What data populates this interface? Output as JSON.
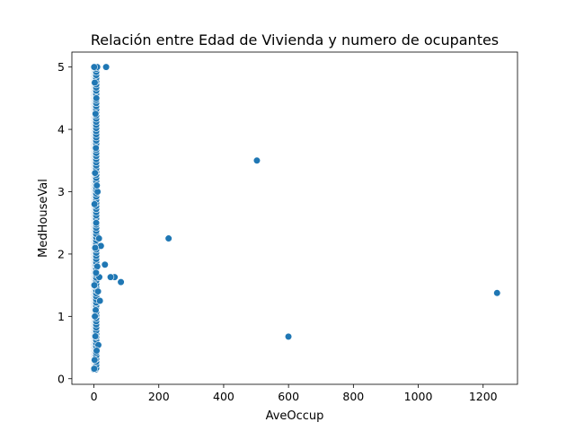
{
  "chart_data": {
    "type": "scatter",
    "title": "Relación entre Edad de Vivienda y numero de ocupantes",
    "xlabel": "AveOccup",
    "ylabel": "MedHouseVal",
    "xlim": [
      -68,
      1306
    ],
    "ylim": [
      -0.09,
      5.24
    ],
    "xticks": [
      0,
      200,
      400,
      600,
      800,
      1000,
      1200
    ],
    "yticks": [
      0,
      1,
      2,
      3,
      4,
      5
    ],
    "grid": false,
    "marker_color": "#1f77b4",
    "marker_edge_color": "#ffffff",
    "points": [
      {
        "x": 1243,
        "y": 1.375
      },
      {
        "x": 599.7,
        "y": 0.675
      },
      {
        "x": 502.5,
        "y": 3.5
      },
      {
        "x": 230.2,
        "y": 2.25
      },
      {
        "x": 83.2,
        "y": 1.55
      },
      {
        "x": 63.8,
        "y": 1.63
      },
      {
        "x": 51.4,
        "y": 1.63
      },
      {
        "x": 37.6,
        "y": 5.0
      },
      {
        "x": 33.9,
        "y": 1.83
      },
      {
        "x": 21.6,
        "y": 2.13
      },
      {
        "x": 18.4,
        "y": 1.25
      },
      {
        "x": 16.5,
        "y": 1.63
      },
      {
        "x": 15.6,
        "y": 2.25
      },
      {
        "x": 13.6,
        "y": 0.54
      },
      {
        "x": 12.5,
        "y": 1.4
      },
      {
        "x": 11.2,
        "y": 3.0
      },
      {
        "x": 10.3,
        "y": 1.8
      },
      {
        "x": 10.0,
        "y": 5.0
      },
      {
        "x": 9.0,
        "y": 3.1
      },
      {
        "x": 8.3,
        "y": 0.45
      },
      {
        "x": 7.5,
        "y": 4.5
      },
      {
        "x": 7.0,
        "y": 2.5
      },
      {
        "x": 6.5,
        "y": 1.7
      },
      {
        "x": 6.0,
        "y": 3.7
      },
      {
        "x": 5.5,
        "y": 1.1
      },
      {
        "x": 5.0,
        "y": 4.25
      },
      {
        "x": 4.5,
        "y": 0.68
      },
      {
        "x": 4.0,
        "y": 2.1
      },
      {
        "x": 3.5,
        "y": 3.3
      },
      {
        "x": 3.0,
        "y": 1.0
      },
      {
        "x": 2.6,
        "y": 4.75
      },
      {
        "x": 2.2,
        "y": 0.3
      },
      {
        "x": 1.8,
        "y": 2.8
      },
      {
        "x": 1.4,
        "y": 1.5
      },
      {
        "x": 1.0,
        "y": 0.16
      },
      {
        "x": 0.8,
        "y": 5.0
      }
    ],
    "dense_band": {
      "x_values": [
        0,
        1.2,
        2.4,
        3.6,
        4.8,
        6.0,
        7.2
      ],
      "y_min": 0.15,
      "y_max": 5.0,
      "y_step": 0.05
    }
  }
}
